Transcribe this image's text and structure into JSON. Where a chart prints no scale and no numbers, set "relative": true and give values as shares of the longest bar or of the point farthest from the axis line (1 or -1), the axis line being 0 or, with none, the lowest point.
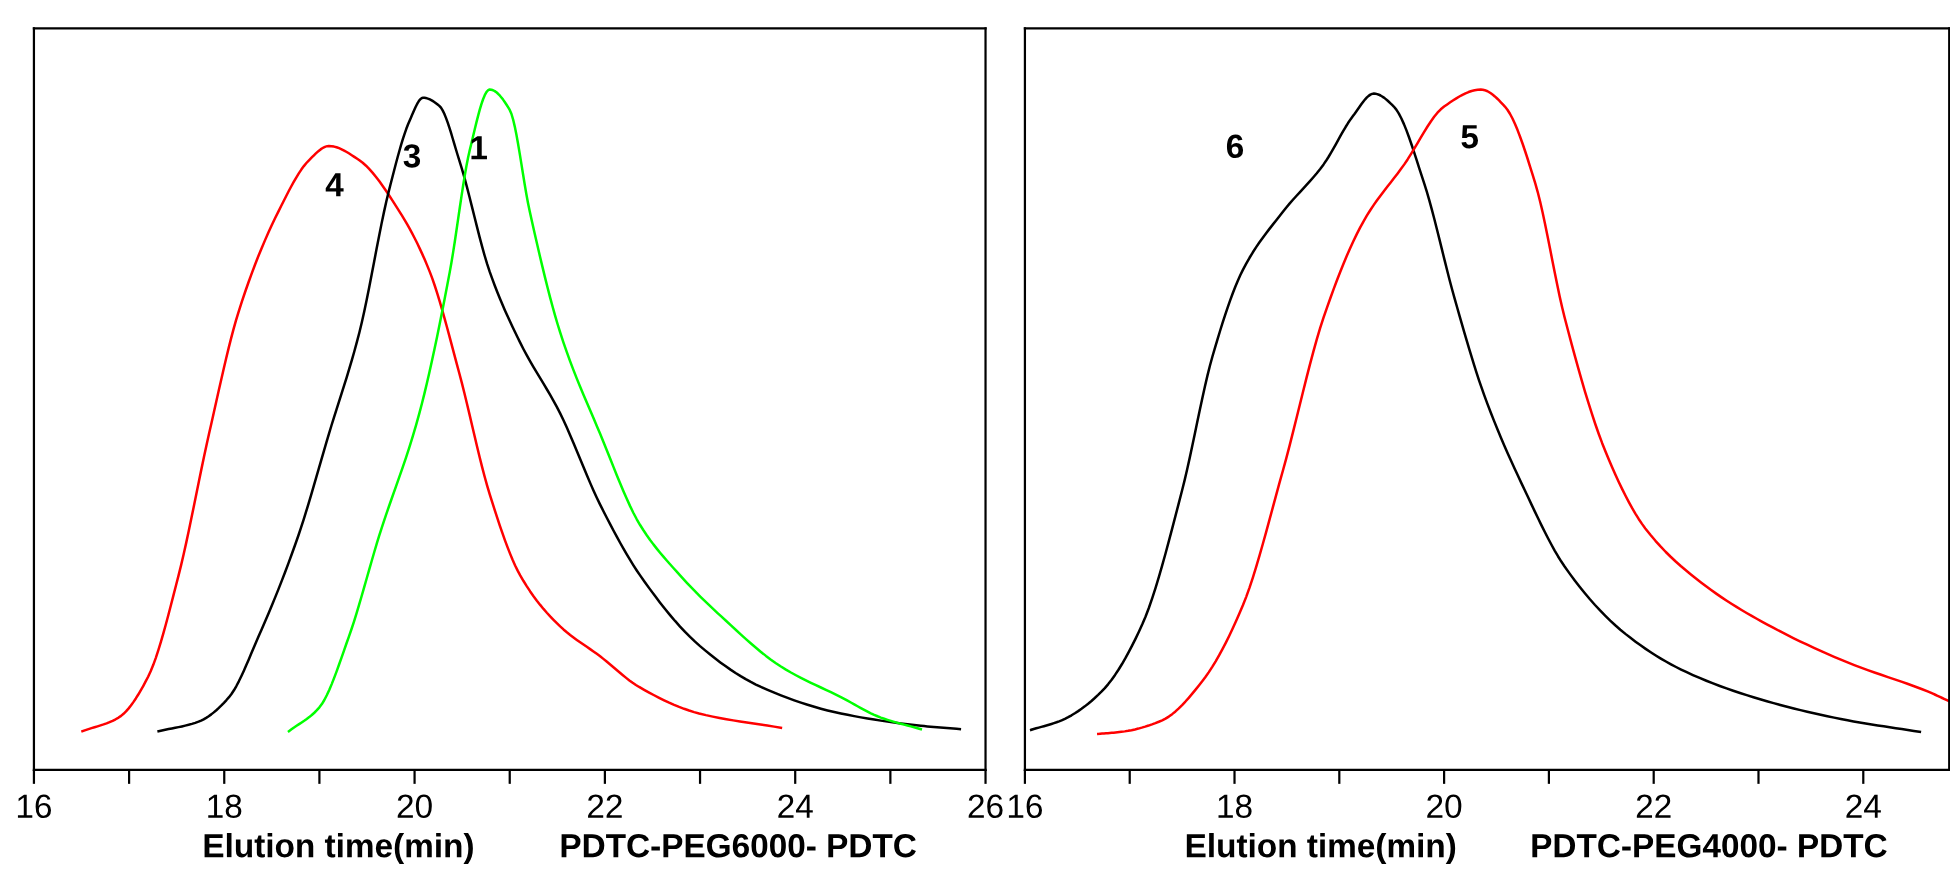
{
  "chart_data": [
    {
      "type": "line",
      "relative": true,
      "xlabel": "Elution time(min)",
      "xlim": [
        16,
        26
      ],
      "tick_labels": "x",
      "grid": false,
      "marker": "none",
      "line_style": "solid",
      "xticks": [
        16,
        {
          "value": 17,
          "label": null
        },
        18,
        {
          "value": 19,
          "label": null
        },
        20,
        {
          "value": 21,
          "label": null
        },
        22,
        {
          "value": 23,
          "label": null
        },
        24,
        {
          "value": 25,
          "label": null
        },
        26
      ],
      "annotations": [
        "PDTC-PEG6000- PDTC"
      ],
      "series": [
        {
          "name": "4",
          "color": "#ff0000",
          "x": [
            16.51,
            16.89,
            17.2,
            17.52,
            17.84,
            18.15,
            18.57,
            18.89,
            19.1,
            19.42,
            19.84,
            20.16,
            20.47,
            20.79,
            21.11,
            21.53,
            21.95,
            22.36,
            22.99,
            23.85
          ],
          "values": [
            0.057,
            0.077,
            0.137,
            0.286,
            0.494,
            0.673,
            0.821,
            0.896,
            0.917,
            0.896,
            0.821,
            0.732,
            0.583,
            0.405,
            0.286,
            0.211,
            0.167,
            0.122,
            0.083,
            0.062
          ]
        },
        {
          "name": "3",
          "color": "#000000",
          "x": [
            17.31,
            17.73,
            18.05,
            18.36,
            18.78,
            19.1,
            19.42,
            19.73,
            19.95,
            20.09,
            20.26,
            20.47,
            20.79,
            21.11,
            21.53,
            21.95,
            22.37,
            23.0,
            23.64,
            24.48,
            25.32,
            25.73
          ],
          "values": [
            0.057,
            0.071,
            0.107,
            0.196,
            0.345,
            0.494,
            0.643,
            0.851,
            0.955,
            0.988,
            0.976,
            0.896,
            0.732,
            0.628,
            0.524,
            0.39,
            0.286,
            0.182,
            0.122,
            0.083,
            0.065,
            0.06
          ]
        },
        {
          "name": "1",
          "color": "#00ff00",
          "x": [
            18.68,
            19.0,
            19.31,
            19.63,
            20.05,
            20.37,
            20.58,
            20.79,
            21.0,
            21.21,
            21.53,
            21.95,
            22.37,
            22.79,
            23.22,
            23.85,
            24.48,
            24.9,
            25.32
          ],
          "values": [
            0.057,
            0.092,
            0.196,
            0.345,
            0.524,
            0.732,
            0.911,
            1.0,
            0.97,
            0.821,
            0.643,
            0.494,
            0.36,
            0.286,
            0.226,
            0.152,
            0.107,
            0.077,
            0.06
          ]
        }
      ]
    },
    {
      "type": "line",
      "relative": true,
      "xlabel": "Elution time(min)",
      "xlim": [
        16,
        24.82
      ],
      "tick_labels": "x",
      "grid": false,
      "marker": "none",
      "line_style": "solid",
      "xticks": [
        16,
        {
          "value": 17,
          "label": null
        },
        18,
        {
          "value": 19,
          "label": null
        },
        20,
        {
          "value": 21,
          "label": null
        },
        22,
        {
          "value": 23,
          "label": null
        },
        24
      ],
      "annotations": [
        "PDTC-PEG4000- PDTC"
      ],
      "series": [
        {
          "name": "6",
          "color": "#000000",
          "x": [
            16.06,
            16.35,
            16.73,
            17.12,
            17.5,
            17.79,
            18.08,
            18.46,
            18.85,
            19.13,
            19.33,
            19.52,
            19.81,
            20.1,
            20.38,
            20.77,
            21.15,
            21.73,
            22.31,
            23.08,
            23.85,
            24.54
          ],
          "values": [
            0.059,
            0.073,
            0.115,
            0.214,
            0.411,
            0.608,
            0.735,
            0.82,
            0.89,
            0.961,
            0.994,
            0.975,
            0.862,
            0.693,
            0.552,
            0.411,
            0.299,
            0.2,
            0.144,
            0.101,
            0.073,
            0.056
          ]
        },
        {
          "name": "5",
          "color": "#ff0000",
          "x": [
            16.7,
            16.92,
            17.31,
            17.69,
            18.08,
            18.46,
            18.85,
            19.23,
            19.62,
            20.0,
            20.35,
            20.58,
            20.87,
            21.15,
            21.54,
            21.92,
            22.5,
            23.08,
            23.85,
            24.62,
            24.82
          ],
          "values": [
            0.053,
            0.056,
            0.073,
            0.13,
            0.242,
            0.439,
            0.665,
            0.806,
            0.89,
            0.975,
            1.0,
            0.975,
            0.862,
            0.665,
            0.468,
            0.355,
            0.27,
            0.214,
            0.158,
            0.115,
            0.101
          ]
        }
      ]
    }
  ]
}
